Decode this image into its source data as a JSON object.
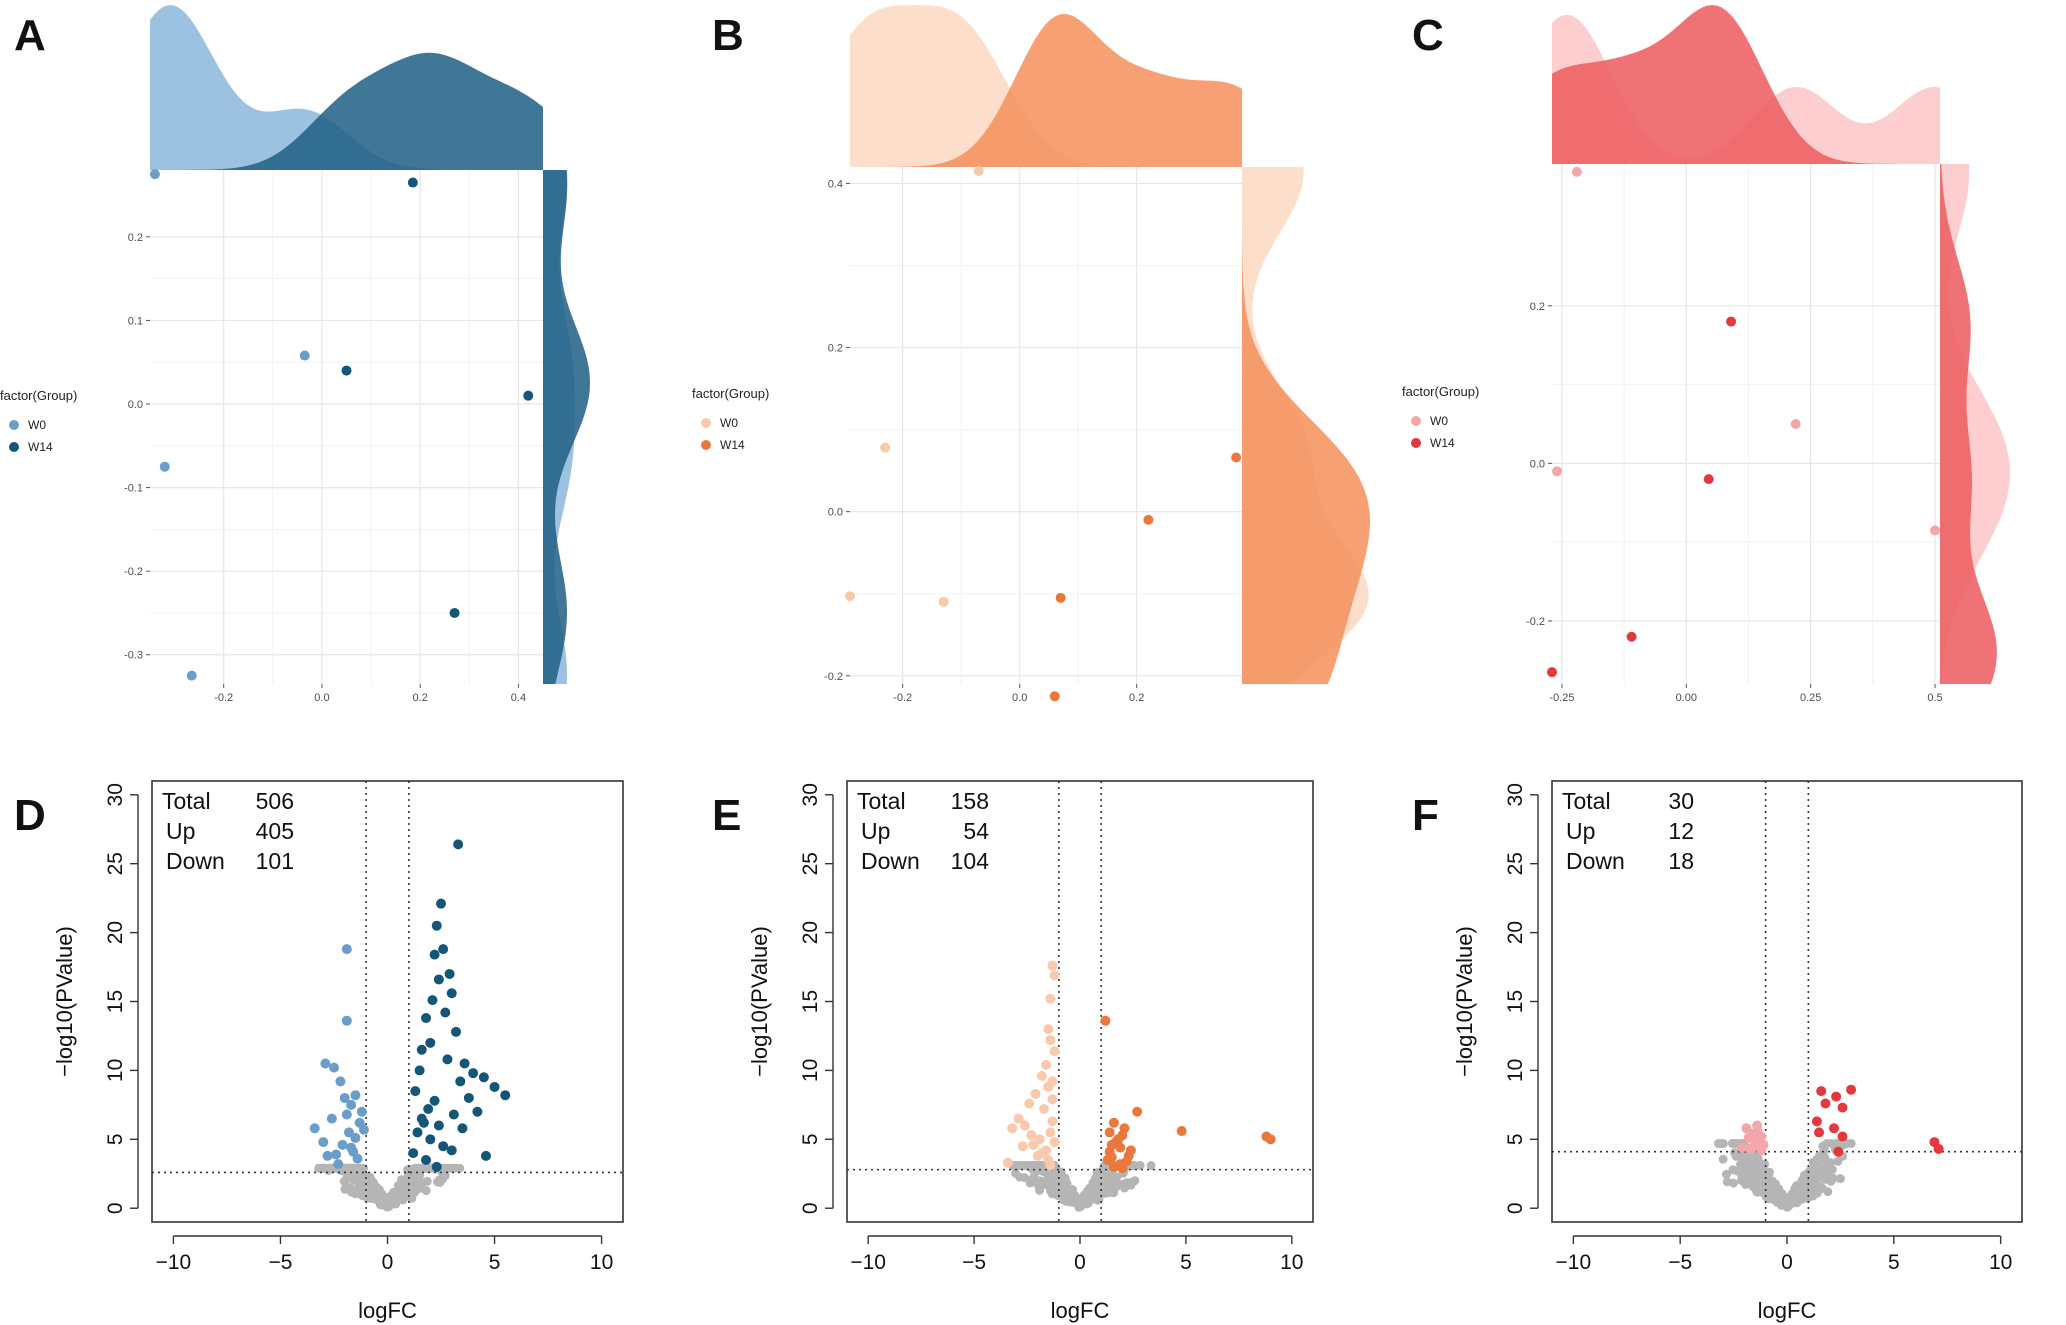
{
  "colors": {
    "A": {
      "w0": "#8cb6da",
      "w14": "#1e5f84",
      "w0_point": "#6a9ec9",
      "w14_point": "#135677"
    },
    "B": {
      "w0": "#fdd8c2",
      "w14": "#f48f5c",
      "w0_point": "#f9c9ad",
      "w14_point": "#e9783c"
    },
    "C": {
      "w0": "#fbc5c8",
      "w14": "#ec5a5e",
      "w0_point": "#f3a7ab",
      "w14_point": "#e2383e"
    },
    "gray": "#b5b5b5"
  },
  "chart_data": [
    {
      "panel": "A",
      "type": "scatter",
      "legend": {
        "title": "factor(Group)",
        "items": [
          "W0",
          "W14"
        ]
      },
      "xlim": [
        -0.35,
        0.45
      ],
      "ylim": [
        -0.335,
        0.28
      ],
      "xticks": [
        -0.2,
        0.0,
        0.2,
        0.4
      ],
      "xtick_labels": [
        "-0.2",
        "0.0",
        "0.2",
        "0.4"
      ],
      "yticks": [
        -0.3,
        -0.2,
        -0.1,
        0.0,
        0.1,
        0.2
      ],
      "ytick_labels": [
        "-0.3",
        "-0.2",
        "-0.1",
        "0.0",
        "0.1",
        "0.2"
      ],
      "series": [
        {
          "name": "W0",
          "x": [
            -0.34,
            -0.32,
            -0.035,
            -0.265
          ],
          "y": [
            0.275,
            -0.075,
            0.058,
            -0.325
          ]
        },
        {
          "name": "W14",
          "x": [
            0.185,
            0.05,
            0.42,
            0.27
          ],
          "y": [
            0.265,
            0.04,
            0.01,
            -0.25
          ]
        }
      ]
    },
    {
      "panel": "B",
      "type": "scatter",
      "legend": {
        "title": "factor(Group)",
        "items": [
          "W0",
          "W14"
        ]
      },
      "xlim": [
        -0.29,
        0.38
      ],
      "ylim": [
        -0.21,
        0.42
      ],
      "xticks": [
        -0.2,
        0.0,
        0.2
      ],
      "xtick_labels": [
        "-0.2",
        "0.0",
        "0.2"
      ],
      "yticks": [
        -0.2,
        0.0,
        0.2,
        0.4
      ],
      "ytick_labels": [
        "-0.2",
        "0.0",
        "0.2",
        "0.4"
      ],
      "series": [
        {
          "name": "W0",
          "x": [
            -0.07,
            -0.23,
            -0.29,
            -0.13
          ],
          "y": [
            0.415,
            0.078,
            -0.103,
            -0.11
          ]
        },
        {
          "name": "W14",
          "x": [
            0.37,
            0.22,
            0.07,
            0.06
          ],
          "y": [
            0.066,
            -0.01,
            -0.105,
            -0.225
          ]
        }
      ]
    },
    {
      "panel": "C",
      "type": "scatter",
      "legend": {
        "title": "factor(Group)",
        "items": [
          "W0",
          "W14"
        ]
      },
      "xlim": [
        -0.27,
        0.51
      ],
      "ylim": [
        -0.28,
        0.38
      ],
      "xticks": [
        -0.25,
        0.0,
        0.25,
        0.5
      ],
      "xtick_labels": [
        "-0.25",
        "0.00",
        "0.25",
        "0.5"
      ],
      "yticks": [
        -0.2,
        0.0,
        0.2
      ],
      "ytick_labels": [
        "-0.2",
        "0.0",
        "0.2"
      ],
      "series": [
        {
          "name": "W0",
          "x": [
            -0.22,
            -0.26,
            0.22,
            0.5
          ],
          "y": [
            0.37,
            -0.01,
            0.05,
            -0.085
          ]
        },
        {
          "name": "W14",
          "x": [
            0.09,
            0.045,
            -0.11,
            -0.27
          ],
          "y": [
            0.18,
            -0.02,
            -0.22,
            -0.265
          ]
        }
      ]
    },
    {
      "panel": "D",
      "type": "scatter",
      "xlabel": "logFC",
      "ylabel": "−log10(PValue)",
      "xlim": [
        -11,
        11
      ],
      "ylim": [
        -1,
        31
      ],
      "xticks": [
        -10,
        -5,
        0,
        5,
        10
      ],
      "xtick_labels": [
        "−10",
        "−5",
        "0",
        "5",
        "10"
      ],
      "yticks": [
        0,
        5,
        10,
        15,
        20,
        25,
        30
      ],
      "ytick_labels": [
        "0",
        "5",
        "10",
        "15",
        "20",
        "25",
        "30"
      ],
      "vlines": [
        -1,
        1
      ],
      "hline": 2.6,
      "stats": {
        "labels": [
          "Total",
          "Up",
          "Down"
        ],
        "values": [
          "506",
          "405",
          "101"
        ]
      },
      "series": [
        {
          "name": "Down",
          "x": [
            -1.9,
            -1.9,
            -2.9,
            -2.5,
            -2.2,
            -2.0,
            -1.7,
            -1.5,
            -3.4,
            -2.6,
            -1.3,
            -1.8,
            -2.1,
            -1.6,
            -2.8,
            -1.4,
            -2.3,
            -1.2,
            -3.0,
            -1.9,
            -1.5,
            -2.4,
            -1.7,
            -1.1
          ],
          "y": [
            18.8,
            13.6,
            10.5,
            10.2,
            9.2,
            8.0,
            7.5,
            8.2,
            5.8,
            6.5,
            6.2,
            5.5,
            4.6,
            4.1,
            3.8,
            3.6,
            3.2,
            7.0,
            4.8,
            6.8,
            5.1,
            3.9,
            4.4,
            5.7
          ]
        },
        {
          "name": "Up",
          "x": [
            3.3,
            2.5,
            2.3,
            2.6,
            2.2,
            2.9,
            2.4,
            3.0,
            2.1,
            1.8,
            2.7,
            3.2,
            2.0,
            1.6,
            3.6,
            4.0,
            4.5,
            5.0,
            5.5,
            3.8,
            3.4,
            2.8,
            1.5,
            1.3,
            2.2,
            1.9,
            3.1,
            4.2,
            1.7,
            2.4,
            1.4,
            2.0,
            3.5,
            4.6,
            1.2,
            2.6,
            1.8,
            3.0,
            2.3,
            1.6
          ],
          "y": [
            26.4,
            22.1,
            20.5,
            18.8,
            18.4,
            17.0,
            16.6,
            15.6,
            15.1,
            13.8,
            14.2,
            12.8,
            12.0,
            11.5,
            10.5,
            9.8,
            9.5,
            8.8,
            8.2,
            8.0,
            9.2,
            10.8,
            10.0,
            8.5,
            7.8,
            7.2,
            6.8,
            7.0,
            6.2,
            6.0,
            5.5,
            5.0,
            5.8,
            3.8,
            4.0,
            4.5,
            3.5,
            4.2,
            3.0,
            6.5
          ]
        }
      ]
    },
    {
      "panel": "E",
      "type": "scatter",
      "xlabel": "logFC",
      "ylabel": "−log10(PValue)",
      "xlim": [
        -11,
        11
      ],
      "ylim": [
        -1,
        31
      ],
      "xticks": [
        -10,
        -5,
        0,
        5,
        10
      ],
      "xtick_labels": [
        "−10",
        "−5",
        "0",
        "5",
        "10"
      ],
      "yticks": [
        0,
        5,
        10,
        15,
        20,
        25,
        30
      ],
      "ytick_labels": [
        "0",
        "5",
        "10",
        "15",
        "20",
        "25",
        "30"
      ],
      "vlines": [
        -1,
        1
      ],
      "hline": 2.8,
      "stats": {
        "labels": [
          "Total",
          "Up",
          "Down"
        ],
        "values": [
          "158",
          "54",
          "104"
        ]
      },
      "series": [
        {
          "name": "Down",
          "x": [
            -1.3,
            -1.2,
            -1.4,
            -1.5,
            -1.4,
            -1.2,
            -1.6,
            -1.8,
            -1.3,
            -2.1,
            -1.5,
            -2.4,
            -1.7,
            -1.3,
            -2.9,
            -3.2,
            -2.6,
            -1.9,
            -1.4,
            -2.2,
            -1.6,
            -1.2,
            -2.0,
            -3.4,
            -1.5,
            -1.8,
            -2.3,
            -1.3,
            -2.7,
            -1.4
          ],
          "y": [
            17.6,
            16.9,
            15.2,
            13.0,
            12.2,
            11.4,
            10.4,
            9.6,
            9.2,
            8.3,
            8.8,
            7.6,
            7.2,
            7.9,
            6.5,
            5.8,
            6.0,
            5.0,
            5.5,
            4.6,
            4.2,
            4.8,
            3.8,
            3.3,
            3.5,
            4.0,
            5.3,
            6.3,
            4.5,
            3.1
          ]
        },
        {
          "name": "Up",
          "x": [
            1.2,
            1.6,
            2.7,
            2.1,
            2.0,
            1.8,
            1.5,
            1.4,
            2.3,
            1.3,
            1.9,
            1.7,
            4.8,
            8.8,
            9.0,
            1.6,
            2.4,
            2.2,
            1.4,
            1.9,
            1.5,
            2.0
          ],
          "y": [
            13.6,
            6.2,
            7.0,
            5.8,
            5.3,
            5.0,
            4.6,
            4.1,
            3.8,
            3.5,
            3.2,
            4.8,
            5.6,
            5.2,
            5.0,
            3.0,
            4.2,
            3.4,
            5.5,
            4.4,
            3.7,
            2.9
          ]
        }
      ]
    },
    {
      "panel": "F",
      "type": "scatter",
      "xlabel": "logFC",
      "ylabel": "−log10(PValue)",
      "xlim": [
        -11,
        11
      ],
      "ylim": [
        -1,
        31
      ],
      "xticks": [
        -10,
        -5,
        0,
        5,
        10
      ],
      "xtick_labels": [
        "−10",
        "−5",
        "0",
        "5",
        "10"
      ],
      "yticks": [
        0,
        5,
        10,
        15,
        20,
        25,
        30
      ],
      "ytick_labels": [
        "0",
        "5",
        "10",
        "15",
        "20",
        "25",
        "30"
      ],
      "vlines": [
        -1,
        1
      ],
      "hline": 4.1,
      "stats": {
        "labels": [
          "Total",
          "Up",
          "Down"
        ],
        "values": [
          "30",
          "12",
          "18"
        ]
      },
      "series": [
        {
          "name": "Down",
          "x": [
            -1.9,
            -1.4,
            -1.6,
            -1.2,
            -1.3,
            -1.5,
            -2.1,
            -1.1,
            -1.7,
            -1.4,
            -1.8,
            -1.2
          ],
          "y": [
            5.8,
            5.6,
            5.4,
            5.2,
            4.9,
            4.7,
            4.4,
            4.6,
            4.3,
            6.0,
            5.1,
            4.2
          ]
        },
        {
          "name": "Up",
          "x": [
            1.6,
            2.3,
            3.0,
            1.8,
            2.6,
            1.4,
            2.2,
            2.6,
            1.5,
            6.9,
            7.1,
            2.4
          ],
          "y": [
            8.5,
            8.1,
            8.6,
            7.6,
            7.3,
            6.3,
            5.8,
            5.2,
            5.5,
            4.8,
            4.3,
            4.1
          ]
        }
      ]
    }
  ]
}
